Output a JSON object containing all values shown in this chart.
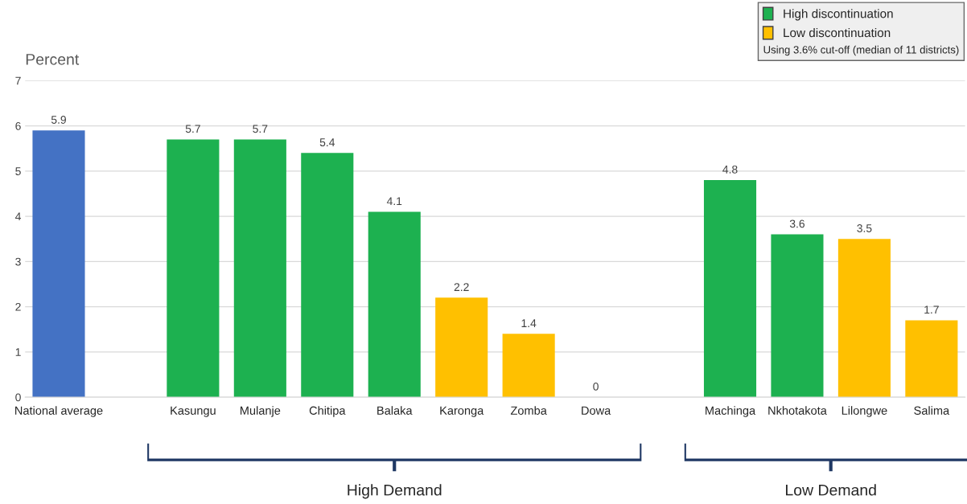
{
  "chart_data": {
    "type": "bar",
    "ylabel": "Percent",
    "categories": [
      "National average",
      null,
      "Kasungu",
      "Mulanje",
      "Chitipa",
      "Balaka",
      "Karonga",
      "Zomba",
      "Dowa",
      null,
      "Machinga",
      "Nkhotakota",
      "Lilongwe",
      "Salima"
    ],
    "series": [
      {
        "color": "#4472c4",
        "values": [
          5.9,
          null,
          null,
          null,
          null,
          null,
          null,
          null,
          null,
          null,
          null,
          null,
          null,
          null
        ]
      },
      {
        "name": "High discontinuation",
        "color": "#1db150",
        "values": [
          null,
          null,
          5.7,
          5.7,
          5.4,
          4.1,
          null,
          null,
          null,
          null,
          4.8,
          3.6,
          null,
          null
        ]
      },
      {
        "name": "Low discontinuation",
        "color": "#ffc000",
        "values": [
          null,
          null,
          null,
          null,
          null,
          null,
          2.2,
          1.4,
          0,
          null,
          null,
          null,
          3.5,
          1.7
        ]
      }
    ],
    "ylim": [
      0,
      7
    ],
    "yticks": [
      0,
      1,
      2,
      3,
      4,
      5,
      6,
      7
    ],
    "grid": "y",
    "data_labels": true,
    "legend": "top right",
    "annotations": [
      "Using 3.6% cut-off (median of 11 districts)",
      "High Demand",
      "Low Demand"
    ]
  }
}
